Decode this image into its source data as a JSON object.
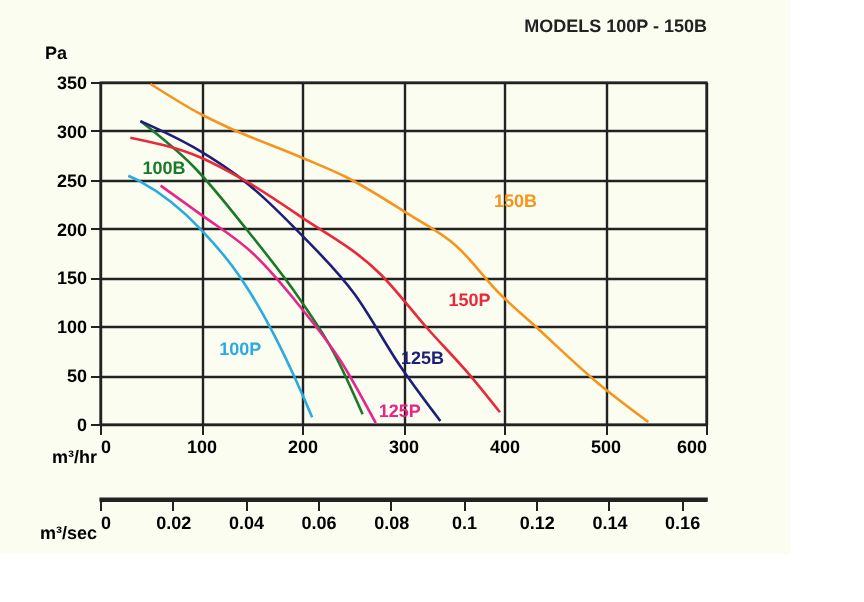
{
  "chart_data": {
    "type": "line",
    "title": "MODELS 100P - 150B",
    "xlabel": "m³/hr",
    "ylabel": "Pa",
    "x2label": "m³/sec",
    "xlim": [
      0,
      600
    ],
    "xticks": [
      0,
      100,
      200,
      300,
      400,
      500,
      600
    ],
    "ylim": [
      0,
      350
    ],
    "yticks": [
      0,
      50,
      100,
      150,
      200,
      250,
      300,
      350
    ],
    "x2lim": [
      0,
      0.1667
    ],
    "x2ticks": [
      0,
      0.02,
      0.04,
      0.06,
      0.08,
      0.1,
      0.12,
      0.14,
      0.16
    ],
    "grid": true,
    "marker": "none",
    "line_style": "solid",
    "series": [
      {
        "name": "100P",
        "color": "#29abe2",
        "x": [
          28,
          40,
          100,
          139,
          172,
          200,
          210
        ],
        "values": [
          254,
          248,
          199,
          150,
          92,
          31,
          7
        ]
      },
      {
        "name": "100B",
        "color": "#1a7a2a",
        "x": [
          40,
          93,
          146,
          199,
          232,
          260
        ],
        "values": [
          310,
          263,
          198,
          126,
          72,
          10
        ]
      },
      {
        "name": "125P",
        "color": "#e8258a",
        "x": [
          60,
          99,
          152,
          199,
          238,
          273
        ],
        "values": [
          244,
          215,
          174,
          119,
          65,
          1
        ]
      },
      {
        "name": "125B",
        "color": "#1c1f7a",
        "x": [
          40,
          93,
          146,
          199,
          252,
          298,
          337
        ],
        "values": [
          310,
          283,
          246,
          194,
          133,
          58,
          3
        ]
      },
      {
        "name": "150P",
        "color": "#e8293a",
        "x": [
          30,
          99,
          142,
          199,
          278,
          324,
          367,
          396
        ],
        "values": [
          293,
          273,
          250,
          212,
          153,
          98,
          49,
          12
        ]
      },
      {
        "name": "150B",
        "color": "#f7941d",
        "x": [
          50,
          100,
          126,
          199,
          245,
          305,
          353,
          396,
          431,
          494,
          543
        ],
        "values": [
          348,
          317,
          304,
          273,
          252,
          215,
          182,
          133,
          100,
          41,
          2
        ]
      }
    ]
  }
}
